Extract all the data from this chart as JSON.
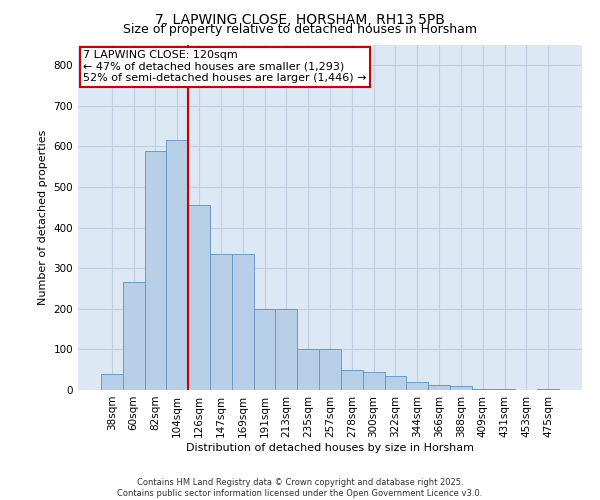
{
  "title1": "7, LAPWING CLOSE, HORSHAM, RH13 5PB",
  "title2": "Size of property relative to detached houses in Horsham",
  "xlabel": "Distribution of detached houses by size in Horsham",
  "ylabel": "Number of detached properties",
  "categories": [
    "38sqm",
    "60sqm",
    "82sqm",
    "104sqm",
    "126sqm",
    "147sqm",
    "169sqm",
    "191sqm",
    "213sqm",
    "235sqm",
    "257sqm",
    "278sqm",
    "300sqm",
    "322sqm",
    "344sqm",
    "366sqm",
    "388sqm",
    "409sqm",
    "431sqm",
    "453sqm",
    "475sqm"
  ],
  "values": [
    40,
    265,
    590,
    615,
    455,
    335,
    335,
    200,
    200,
    100,
    100,
    50,
    45,
    35,
    20,
    13,
    10,
    2,
    2,
    1,
    2
  ],
  "bar_color": "#b8cfe8",
  "bar_edge_color": "#6699cc",
  "vline_x": 4,
  "annotation_title": "7 LAPWING CLOSE: 120sqm",
  "annotation_line1": "← 47% of detached houses are smaller (1,293)",
  "annotation_line2": "52% of semi-detached houses are larger (1,446) →",
  "annotation_box_color": "#ffffff",
  "annotation_box_edge": "#cc0000",
  "vline_color": "#cc0000",
  "footer1": "Contains HM Land Registry data © Crown copyright and database right 2025.",
  "footer2": "Contains public sector information licensed under the Open Government Licence v3.0.",
  "ylim": [
    0,
    850
  ],
  "yticks": [
    0,
    100,
    200,
    300,
    400,
    500,
    600,
    700,
    800
  ],
  "grid_color": "#c0d0e0",
  "bg_color": "#dce8f4",
  "title_fontsize": 10,
  "subtitle_fontsize": 9,
  "axis_label_fontsize": 8,
  "tick_fontsize": 7.5,
  "footer_fontsize": 6,
  "ann_fontsize": 8
}
